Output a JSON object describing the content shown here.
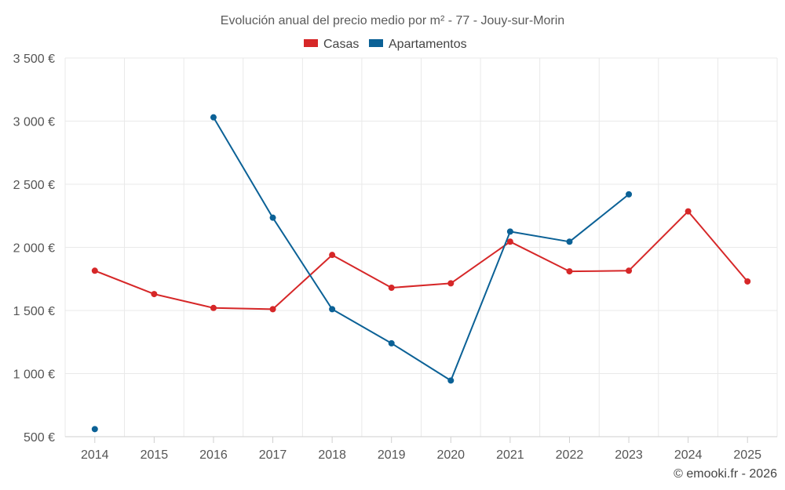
{
  "chart_data": {
    "type": "line",
    "title": "Evolución anual del precio medio por m² - 77 - Jouy-sur-Morin",
    "xlabel": "",
    "ylabel": "",
    "categories": [
      "2014",
      "2015",
      "2016",
      "2017",
      "2018",
      "2019",
      "2020",
      "2021",
      "2022",
      "2023",
      "2024",
      "2025"
    ],
    "ylim": [
      500,
      3500
    ],
    "yticks": [
      500,
      1000,
      1500,
      2000,
      2500,
      3000,
      3500
    ],
    "ytick_labels": [
      "500 €",
      "1 000 €",
      "1 500 €",
      "2 000 €",
      "2 500 €",
      "3 000 €",
      "3 500 €"
    ],
    "grid": true,
    "legend_position": "top-center",
    "series": [
      {
        "name": "Casas",
        "color": "#d62728",
        "values": [
          1815,
          1630,
          1520,
          1510,
          1940,
          1680,
          1715,
          2045,
          1810,
          1815,
          2285,
          1730
        ]
      },
      {
        "name": "Apartamentos",
        "color": "#0b6196",
        "values": [
          560,
          null,
          3030,
          2235,
          1510,
          1240,
          945,
          2125,
          2045,
          2420,
          null,
          null
        ]
      }
    ]
  },
  "footer": {
    "credit": "© emooki.fr - 2026"
  }
}
